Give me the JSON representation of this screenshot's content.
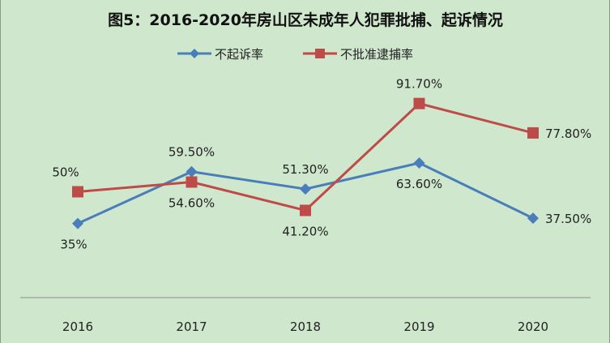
{
  "chart_data": {
    "type": "line",
    "title": "图5：2016-2020年房山区未成年人犯罪批捕、起诉情况",
    "categories": [
      "2016",
      "2017",
      "2018",
      "2019",
      "2020"
    ],
    "ylim": [
      0,
      100
    ],
    "grid": false,
    "legend_placement": "top",
    "series": [
      {
        "name": "不起诉率",
        "color": "#4a7ebb",
        "marker": "diamond",
        "values": [
          35,
          59.5,
          51.3,
          63.6,
          37.5
        ],
        "labels": [
          "35%",
          "59.50%",
          "51.30%",
          "63.60%",
          "37.50%"
        ],
        "label_pos": [
          "below",
          "above",
          "above",
          "below",
          "right"
        ]
      },
      {
        "name": "不批准逮捕率",
        "color": "#be4b48",
        "marker": "square",
        "values": [
          50,
          54.6,
          41.2,
          91.7,
          77.8
        ],
        "labels": [
          "50%",
          "54.60%",
          "41.20%",
          "91.70%",
          "77.80%"
        ],
        "label_pos": [
          "above",
          "below",
          "below",
          "above",
          "right"
        ]
      }
    ]
  }
}
